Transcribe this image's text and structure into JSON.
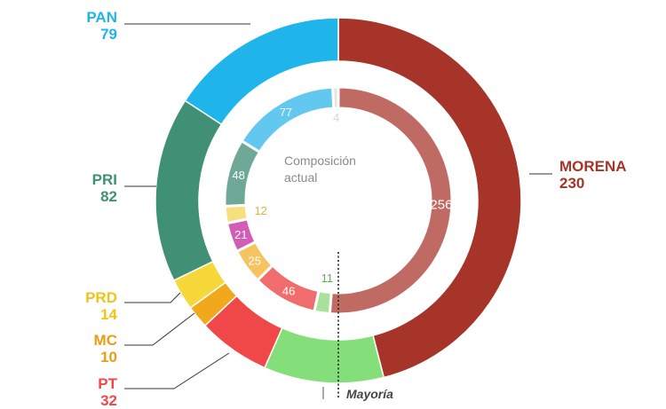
{
  "chart_data": {
    "type": "pie",
    "center_label": "Composición\nactual",
    "majority_label": "Mayoría",
    "outer_ring": {
      "total": 500,
      "slices": [
        {
          "name": "MORENA",
          "value": 230,
          "color": "#a63428"
        },
        {
          "name": "PT",
          "value": 32,
          "color": "#f04848"
        },
        {
          "name": "MC",
          "value": 10,
          "color": "#f2a81d"
        },
        {
          "name": "PRD",
          "value": 14,
          "color": "#f7d83a"
        },
        {
          "name": "PRI",
          "value": 82,
          "color": "#3f9074"
        },
        {
          "name": "PAN",
          "value": 79,
          "color": "#1fb5ea"
        }
      ],
      "hidden": [
        {
          "name": "",
          "value": 53,
          "color": "#84de7a"
        }
      ]
    },
    "inner_ring": {
      "total": 500,
      "slices": [
        {
          "value": 256,
          "color": "#bf6a62",
          "label_color": "#ffffff"
        },
        {
          "value": 11,
          "color": "#a8e29a",
          "label_color": "#5ab34a"
        },
        {
          "value": 46,
          "color": "#f16d6d",
          "label_color": "#ffffff"
        },
        {
          "value": 25,
          "color": "#f5c461",
          "label_color": "#ffffff"
        },
        {
          "value": 21,
          "color": "#d35cb7",
          "label_color": "#ffffff"
        },
        {
          "value": 12,
          "color": "#f7df7b",
          "label_color": "#e0b23a"
        },
        {
          "value": 48,
          "color": "#6fa897",
          "label_color": "#ffffff"
        },
        {
          "value": 77,
          "color": "#62c8f0",
          "label_color": "#ffffff"
        },
        {
          "value": 4,
          "color": "#e4e4e4",
          "label_color": "#d6d6d6"
        }
      ]
    }
  }
}
